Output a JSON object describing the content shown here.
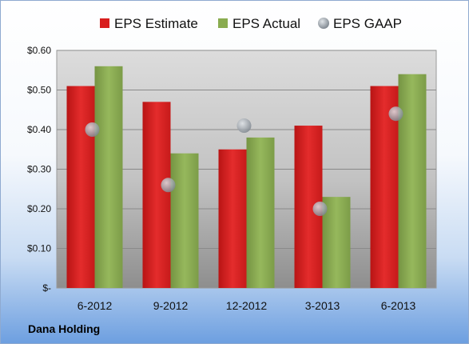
{
  "company": "Dana Holding",
  "chart_data": {
    "type": "bar",
    "categories": [
      "6-2012",
      "9-2012",
      "12-2012",
      "3-2013",
      "6-2013"
    ],
    "series": [
      {
        "name": "EPS Estimate",
        "kind": "bar",
        "color": "#d81e1e",
        "values": [
          0.51,
          0.47,
          0.35,
          0.41,
          0.51
        ]
      },
      {
        "name": "EPS Actual",
        "kind": "bar",
        "color": "#8aac50",
        "values": [
          0.56,
          0.34,
          0.38,
          0.23,
          0.54
        ]
      },
      {
        "name": "EPS GAAP",
        "kind": "marker",
        "color": "#a9b3be",
        "values": [
          0.4,
          0.26,
          0.41,
          0.2,
          0.44
        ]
      }
    ],
    "y_ticks": [
      {
        "value": 0.0,
        "label": "$-"
      },
      {
        "value": 0.1,
        "label": "$0.10"
      },
      {
        "value": 0.2,
        "label": "$0.20"
      },
      {
        "value": 0.3,
        "label": "$0.30"
      },
      {
        "value": 0.4,
        "label": "$0.40"
      },
      {
        "value": 0.5,
        "label": "$0.50"
      },
      {
        "value": 0.6,
        "label": "$0.60"
      }
    ],
    "ylim": [
      0,
      0.6
    ],
    "grid": true,
    "legend_position": "top"
  }
}
